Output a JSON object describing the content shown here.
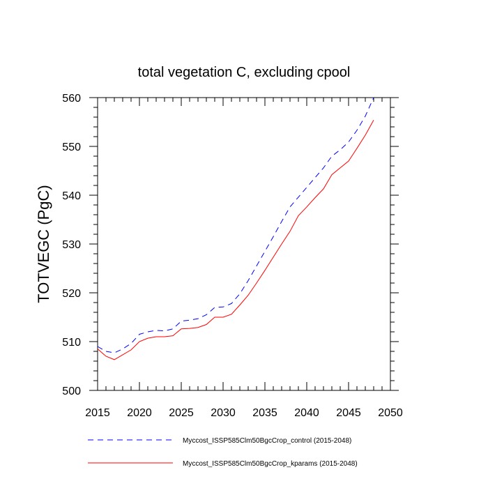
{
  "chart_data": {
    "type": "line",
    "title": "total vegetation C, excluding cpool",
    "xlabel": "",
    "ylabel": "TOTVEGC  (PgC)",
    "xlim": [
      2015,
      2050
    ],
    "ylim": [
      500,
      560
    ],
    "xticks": [
      2015,
      2020,
      2025,
      2030,
      2035,
      2040,
      2045,
      2050
    ],
    "yticks": [
      500,
      510,
      520,
      530,
      540,
      550,
      560
    ],
    "grid": false,
    "legend_position": "bottom",
    "x": [
      2015,
      2016,
      2017,
      2018,
      2019,
      2020,
      2021,
      2022,
      2023,
      2024,
      2025,
      2026,
      2027,
      2028,
      2029,
      2030,
      2031,
      2032,
      2033,
      2034,
      2035,
      2036,
      2037,
      2038,
      2039,
      2040,
      2041,
      2042,
      2043,
      2044,
      2045,
      2046,
      2047,
      2048
    ],
    "series": [
      {
        "name": "Myccost_ISSP585Clm50BgcCrop_control (2015-2048)",
        "color": "#0000ff",
        "dash": "dashed",
        "values": [
          509.0,
          508.0,
          507.7,
          508.5,
          509.6,
          511.5,
          512.0,
          512.3,
          512.2,
          512.6,
          514.2,
          514.4,
          514.7,
          515.5,
          517.0,
          517.1,
          517.8,
          519.8,
          522.5,
          525.5,
          528.5,
          531.5,
          534.6,
          537.6,
          539.6,
          541.6,
          543.6,
          545.6,
          548.0,
          549.3,
          550.9,
          553.3,
          556.2,
          560.0
        ]
      },
      {
        "name": "Myccost_ISSP585Clm50BgcCrop_kparams (2015-2048)",
        "color": "#ff0000",
        "dash": "solid",
        "values": [
          508.5,
          507.0,
          506.3,
          507.3,
          508.3,
          510.0,
          510.7,
          511.0,
          511.0,
          511.2,
          512.6,
          512.7,
          512.9,
          513.5,
          515.0,
          515.0,
          515.6,
          517.5,
          519.5,
          522.0,
          524.6,
          527.3,
          530.0,
          532.6,
          535.8,
          537.6,
          539.5,
          541.3,
          544.2,
          545.6,
          547.0,
          549.6,
          552.3,
          555.4
        ]
      }
    ]
  }
}
